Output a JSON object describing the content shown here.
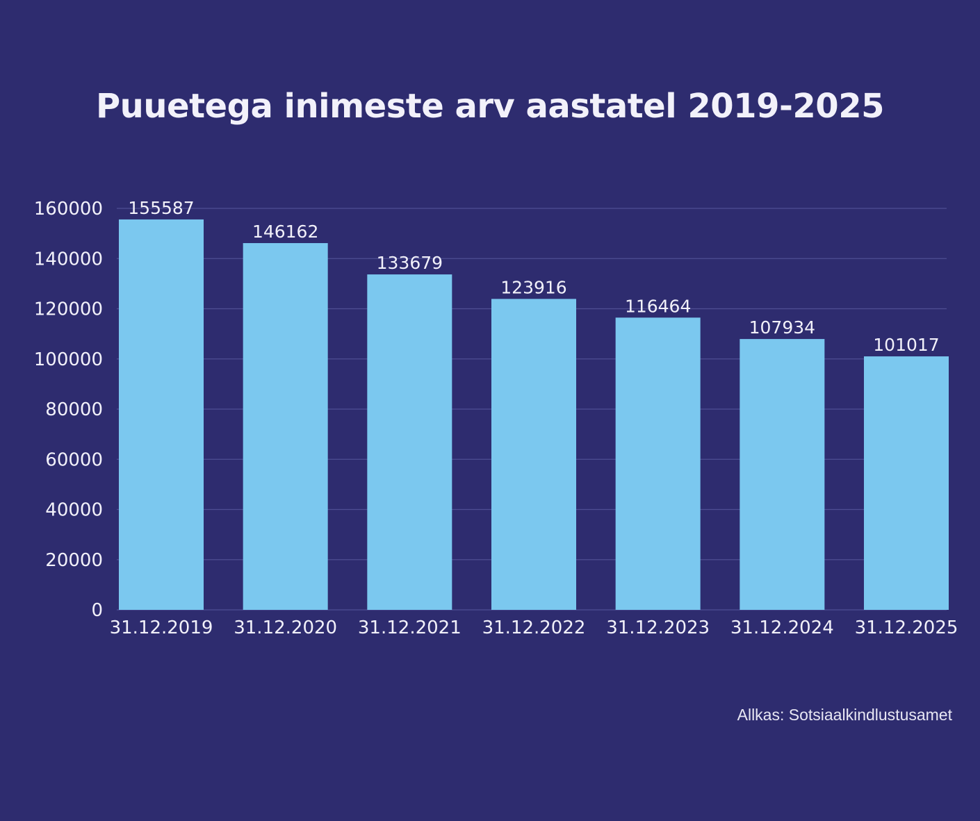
{
  "title": "Puuetega inimeste arv aastatel 2019-2025",
  "source": "Allkas: Sotsiaalkindlustusamet",
  "colors": {
    "background": "#2e2c6f",
    "bar": "#7bc8ef",
    "grid": "#4f4e93",
    "text": "#f2f1fa"
  },
  "chart_data": {
    "type": "bar",
    "title": "Puuetega inimeste arv aastatel 2019-2025",
    "xlabel": "",
    "ylabel": "",
    "categories": [
      "31.12.2019",
      "31.12.2020",
      "31.12.2021",
      "31.12.2022",
      "31.12.2023",
      "31.12.2024",
      "31.12.2025"
    ],
    "values": [
      155587,
      146162,
      133679,
      123916,
      116464,
      107934,
      101017
    ],
    "value_labels": [
      "155587",
      "146162",
      "133679",
      "123916",
      "116464",
      "107934",
      "101017"
    ],
    "ylim": [
      0,
      160000
    ],
    "yticks": [
      "0",
      "20000",
      "40000",
      "60000",
      "80000",
      "100000",
      "120000",
      "140000",
      "160000"
    ],
    "grid": true,
    "legend": "none"
  }
}
